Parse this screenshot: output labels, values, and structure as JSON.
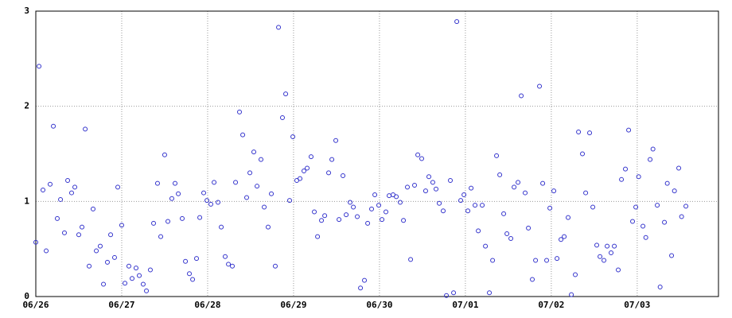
{
  "chart_data": {
    "type": "scatter",
    "color": "#3333cc",
    "grid": true,
    "xlim": [
      0,
      190.7
    ],
    "xticks": [
      {
        "value": 0,
        "label": "06/26"
      },
      {
        "value": 24,
        "label": "06/27"
      },
      {
        "value": 48,
        "label": "06/28"
      },
      {
        "value": 72,
        "label": "06/29"
      },
      {
        "value": 96,
        "label": "06/30"
      },
      {
        "value": 120,
        "label": "07/01"
      },
      {
        "value": 144,
        "label": "07/02"
      },
      {
        "value": 168,
        "label": "07/03"
      }
    ],
    "ylim": [
      0,
      3
    ],
    "yticks": [
      0,
      1,
      2,
      3
    ],
    "x": [
      0,
      0.9,
      2,
      2.9,
      4,
      4.9,
      6,
      6.9,
      8,
      8.9,
      10,
      10.9,
      12,
      12.9,
      13.8,
      14.9,
      16,
      16.9,
      18,
      18.9,
      20,
      20.9,
      22,
      22.9,
      24,
      24.9,
      26,
      26.9,
      28,
      28.9,
      30,
      30.9,
      32,
      32.9,
      34,
      34.9,
      36,
      36.9,
      38,
      38.9,
      39.8,
      40.9,
      41.8,
      42.9,
      43.8,
      44.9,
      45.8,
      46.9,
      47.8,
      48.9,
      49.8,
      50.9,
      51.8,
      52.9,
      53.8,
      54.9,
      55.8,
      56.9,
      57.8,
      58.9,
      59.8,
      60.9,
      61.8,
      62.9,
      63.8,
      64.9,
      65.8,
      66.9,
      67.8,
      68.9,
      69.8,
      70.9,
      71.8,
      72.9,
      73.8,
      74.9,
      75.8,
      76.9,
      77.8,
      78.7,
      79.8,
      80.7,
      81.8,
      82.7,
      83.8,
      84.7,
      85.8,
      86.7,
      87.8,
      88.7,
      89.8,
      90.7,
      91.8,
      92.7,
      93.8,
      94.7,
      95.8,
      96.7,
      97.8,
      98.7,
      99.8,
      100.7,
      101.8,
      102.7,
      103.8,
      104.7,
      105.8,
      106.7,
      107.8,
      108.9,
      109.8,
      110.9,
      111.8,
      112.7,
      113.8,
      114.7,
      115.8,
      116.7,
      117.6,
      118.7,
      119.6,
      120.7,
      121.6,
      122.7,
      123.6,
      124.7,
      125.6,
      126.7,
      127.6,
      128.7,
      129.6,
      130.7,
      131.6,
      132.7,
      133.6,
      134.7,
      135.6,
      136.7,
      137.6,
      138.7,
      139.6,
      140.7,
      141.6,
      142.7,
      143.6,
      144.7,
      145.6,
      146.7,
      147.6,
      148.7,
      149.6,
      150.7,
      151.6,
      152.7,
      153.6,
      154.7,
      155.6,
      156.7,
      157.6,
      158.7,
      159.6,
      160.7,
      161.6,
      162.7,
      163.6,
      164.7,
      165.6,
      166.7,
      167.6,
      168.4,
      169.6,
      170.4,
      171.6,
      172.4,
      173.6,
      174.4,
      175.6,
      176.4,
      177.6,
      178.4,
      179.6,
      180.4,
      181.6
    ],
    "values": [
      0.57,
      2.42,
      1.12,
      0.48,
      1.18,
      1.79,
      0.82,
      1.02,
      0.67,
      1.22,
      1.09,
      1.15,
      0.65,
      0.73,
      1.76,
      0.32,
      0.92,
      0.48,
      0.53,
      0.13,
      0.36,
      0.65,
      0.41,
      1.15,
      0.75,
      0.14,
      0.32,
      0.19,
      0.3,
      0.22,
      0.13,
      0.06,
      0.28,
      0.77,
      1.19,
      0.63,
      1.49,
      0.79,
      1.03,
      1.19,
      1.08,
      0.82,
      0.37,
      0.24,
      0.18,
      0.4,
      0.83,
      1.09,
      1.01,
      0.97,
      1.2,
      0.99,
      0.73,
      0.42,
      0.34,
      0.32,
      1.2,
      1.94,
      1.7,
      1.04,
      1.3,
      1.52,
      1.16,
      1.44,
      0.94,
      0.73,
      1.08,
      0.32,
      2.83,
      1.88,
      2.13,
      1.01,
      1.68,
      1.22,
      1.24,
      1.32,
      1.35,
      1.47,
      0.89,
      0.63,
      0.8,
      0.85,
      1.3,
      1.44,
      1.64,
      0.81,
      1.27,
      0.86,
      0.99,
      0.94,
      0.84,
      0.09,
      0.17,
      0.77,
      0.92,
      1.07,
      0.96,
      0.81,
      0.89,
      1.06,
      1.07,
      1.05,
      0.99,
      0.8,
      1.15,
      0.39,
      1.17,
      1.49,
      1.45,
      1.11,
      1.26,
      1.2,
      1.13,
      0.98,
      0.9,
      0.01,
      1.22,
      0.04,
      2.89,
      1.01,
      1.07,
      0.9,
      1.14,
      0.96,
      0.69,
      0.96,
      0.53,
      0.04,
      0.38,
      1.48,
      1.28,
      0.87,
      0.66,
      0.61,
      1.15,
      1.2,
      2.11,
      1.09,
      0.72,
      0.18,
      0.38,
      2.21,
      1.19,
      0.38,
      0.93,
      1.11,
      0.4,
      0.6,
      0.63,
      0.83,
      0.02,
      0.23,
      1.73,
      1.5,
      1.09,
      1.72,
      0.94,
      0.54,
      0.42,
      0.38,
      0.53,
      0.46,
      0.53,
      0.28,
      1.23,
      1.34,
      1.75,
      0.79,
      0.94,
      1.26,
      0.74,
      0.62,
      1.44,
      1.55,
      0.96,
      0.1,
      0.78,
      1.19,
      0.43,
      1.11,
      1.35,
      0.84,
      0.95
    ]
  }
}
